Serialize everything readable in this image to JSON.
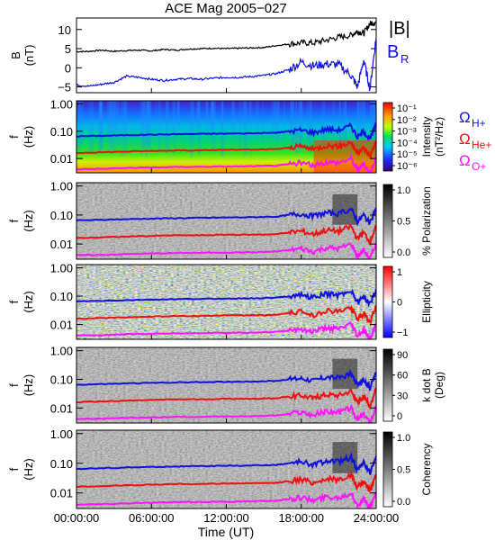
{
  "title": "ACE Mag 2005−027",
  "xlabel": "Time (UT)",
  "x_ticks": [
    "00:00:00",
    "06:00:00",
    "12:00:00",
    "18:00:00",
    "24:00:00"
  ],
  "colors": {
    "black_line": "#000000",
    "blue": "#1010e0",
    "red": "#ee1010",
    "magenta": "#ff10ff"
  },
  "chart_data": [
    {
      "type": "line",
      "ylabel": "B (nT)",
      "y_ticks": [
        "10",
        "5",
        "0",
        "−5"
      ],
      "ylim": [
        -6.5,
        13
      ],
      "legend": {
        "position": "right",
        "entries": [
          {
            "label": "|B|",
            "color": "#000000"
          },
          {
            "label": "B",
            "sub": "R",
            "color": "#1010e0"
          }
        ]
      },
      "x_hours": [
        0,
        1,
        2,
        3,
        4,
        5,
        6,
        7,
        8,
        9,
        10,
        11,
        12,
        13,
        14,
        15,
        16,
        17,
        18,
        19,
        20,
        21,
        22,
        22.5,
        23,
        23.5,
        24
      ],
      "series": [
        {
          "name": "|B|",
          "values": [
            4.2,
            4.3,
            4.6,
            4.3,
            4.5,
            4.6,
            4.4,
            4.8,
            4.6,
            4.9,
            5.0,
            5.1,
            5.0,
            5.1,
            5.2,
            5.3,
            5.8,
            6.2,
            6.5,
            6.5,
            7.2,
            8.0,
            8.5,
            9.5,
            9.0,
            11.5,
            12.0
          ]
        },
        {
          "name": "BR",
          "values": [
            -4.5,
            -4.8,
            -4.3,
            -3.8,
            -2.2,
            -2.5,
            -3.0,
            -3.3,
            -3.0,
            -2.8,
            -3.0,
            -2.7,
            -2.5,
            -2.5,
            -2.3,
            -2.0,
            -1.5,
            -0.5,
            1.5,
            0.5,
            1.0,
            0.8,
            -2.0,
            -5.0,
            2.0,
            -5.5,
            8.0
          ]
        }
      ]
    },
    {
      "type": "heatmap",
      "ylabel": "f (Hz)",
      "y_ticks": [
        "1.00",
        "0.10",
        "0.01"
      ],
      "colorbar": {
        "label": "Intensity (nT²/Hz)",
        "ticks": [
          "10⁻¹",
          "10⁻²",
          "10⁻³",
          "10⁻⁴",
          "10⁻⁵",
          "10⁻⁶"
        ],
        "scale": "rainbow"
      },
      "legend": {
        "position": "right",
        "entries": [
          {
            "label": "Ω",
            "sub": "H+",
            "color": "#1010e0"
          },
          {
            "label": "Ω",
            "sub": "He+",
            "color": "#ee1010"
          },
          {
            "label": "Ω",
            "sub": "O+",
            "color": "#ff10ff"
          }
        ]
      }
    },
    {
      "type": "heatmap",
      "ylabel": "f (Hz)",
      "y_ticks": [
        "1.00",
        "0.10",
        "0.01"
      ],
      "colorbar": {
        "label": "% Polarization",
        "ticks": [
          "1.0",
          "0.5",
          "0.0"
        ],
        "scale": "gray"
      }
    },
    {
      "type": "heatmap",
      "ylabel": "f (Hz)",
      "y_ticks": [
        "1.00",
        "0.10",
        "0.01"
      ],
      "colorbar": {
        "label": "Ellipticity",
        "ticks": [
          "1",
          "0",
          "−1"
        ],
        "scale": "bwr"
      }
    },
    {
      "type": "heatmap",
      "ylabel": "f (Hz)",
      "y_ticks": [
        "1.00",
        "0.10",
        "0.01"
      ],
      "colorbar": {
        "label": "k dot B (Deg)",
        "ticks": [
          "90",
          "60",
          "30",
          "0"
        ],
        "scale": "gray"
      }
    },
    {
      "type": "heatmap",
      "ylabel": "f (Hz)",
      "y_ticks": [
        "1.00",
        "0.10",
        "0.01"
      ],
      "colorbar": {
        "label": "Coherency",
        "ticks": [
          "1.0",
          "0.5",
          "0.0"
        ],
        "scale": "gray"
      }
    }
  ],
  "gyro_lines": {
    "x_hours": [
      0,
      2,
      4,
      6,
      8,
      10,
      12,
      14,
      16,
      17,
      18,
      19,
      20,
      21,
      22,
      22.5,
      23,
      23.5,
      24
    ],
    "H": [
      0.065,
      0.068,
      0.072,
      0.075,
      0.078,
      0.08,
      0.082,
      0.084,
      0.088,
      0.1,
      0.11,
      0.09,
      0.12,
      0.11,
      0.16,
      0.06,
      0.1,
      0.05,
      0.18
    ],
    "He": [
      0.016,
      0.017,
      0.018,
      0.019,
      0.02,
      0.02,
      0.021,
      0.021,
      0.022,
      0.025,
      0.028,
      0.022,
      0.03,
      0.028,
      0.04,
      0.015,
      0.025,
      0.012,
      0.045
    ],
    "O": [
      0.0041,
      0.0042,
      0.0045,
      0.0047,
      0.0049,
      0.005,
      0.0051,
      0.0052,
      0.0055,
      0.0062,
      0.007,
      0.0055,
      0.0075,
      0.007,
      0.01,
      0.0038,
      0.0062,
      0.003,
      0.011
    ]
  }
}
